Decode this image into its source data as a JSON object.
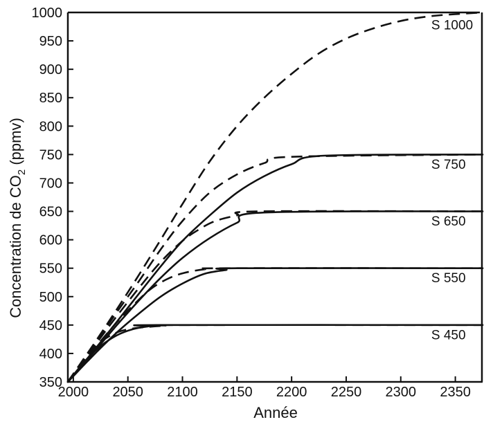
{
  "chart_data": {
    "type": "line",
    "title": "",
    "xlabel": "Année",
    "ylabel": "Concentration de CO",
    "ylabel_sub": "2",
    "ylabel_suffix": " (ppmv)",
    "xlim": [
      1995,
      2375
    ],
    "ylim": [
      350,
      1000
    ],
    "x_ticks": [
      2000,
      2050,
      2100,
      2150,
      2200,
      2250,
      2300,
      2350
    ],
    "y_ticks": [
      350,
      400,
      450,
      500,
      550,
      600,
      650,
      700,
      750,
      800,
      850,
      900,
      950,
      1000
    ],
    "grid": false,
    "series": [
      {
        "name": "S 450",
        "style": "solid",
        "x": [
          1995,
          2010,
          2025,
          2040,
          2055,
          2070,
          2080,
          2375
        ],
        "y": [
          350,
          385,
          413,
          432,
          443,
          448,
          450,
          450
        ]
      },
      {
        "name": "S 450",
        "style": "dashed",
        "x": [
          1995,
          2010,
          2025,
          2040,
          2055,
          2070,
          2085,
          2100,
          2375
        ],
        "y": [
          350,
          390,
          420,
          437,
          444,
          447,
          449,
          450,
          450
        ]
      },
      {
        "name": "S 550",
        "style": "solid",
        "x": [
          1995,
          2020,
          2040,
          2060,
          2080,
          2100,
          2120,
          2140,
          2150,
          2375
        ],
        "y": [
          350,
          400,
          437,
          470,
          500,
          523,
          540,
          547,
          550,
          550
        ]
      },
      {
        "name": "S 550",
        "style": "dashed",
        "x": [
          1995,
          2020,
          2040,
          2055,
          2070,
          2085,
          2100,
          2120,
          2140,
          2375
        ],
        "y": [
          350,
          410,
          455,
          485,
          512,
          530,
          541,
          548,
          550,
          550
        ]
      },
      {
        "name": "S 650",
        "style": "solid",
        "x": [
          1995,
          2020,
          2040,
          2060,
          2080,
          2100,
          2125,
          2150,
          2175,
          2375
        ],
        "y": [
          350,
          405,
          450,
          493,
          533,
          568,
          603,
          630,
          648,
          650
        ]
      },
      {
        "name": "S 650",
        "style": "dashed",
        "x": [
          1995,
          2020,
          2040,
          2060,
          2080,
          2100,
          2115,
          2130,
          2150,
          2170,
          2375
        ],
        "y": [
          350,
          415,
          466,
          515,
          561,
          598,
          618,
          633,
          643,
          650,
          650
        ]
      },
      {
        "name": "S 750",
        "style": "solid",
        "x": [
          1995,
          2020,
          2040,
          2060,
          2080,
          2100,
          2125,
          2150,
          2175,
          2200,
          2230,
          2375
        ],
        "y": [
          350,
          408,
          456,
          505,
          553,
          598,
          643,
          683,
          712,
          733,
          748,
          750
        ]
      },
      {
        "name": "S 750",
        "style": "dashed",
        "x": [
          1995,
          2020,
          2040,
          2060,
          2080,
          2100,
          2125,
          2150,
          2175,
          2200,
          2375
        ],
        "y": [
          350,
          418,
          473,
          527,
          583,
          633,
          683,
          715,
          735,
          746,
          750
        ]
      },
      {
        "name": "S 1000",
        "style": "dashed",
        "x": [
          1995,
          2020,
          2040,
          2060,
          2080,
          2100,
          2125,
          2150,
          2175,
          2200,
          2225,
          2250,
          2275,
          2300,
          2325,
          2350,
          2375
        ],
        "y": [
          350,
          420,
          478,
          538,
          600,
          663,
          738,
          800,
          850,
          892,
          928,
          954,
          972,
          985,
          993,
          997,
          1000
        ]
      }
    ],
    "labels": [
      {
        "text": "S 1000",
        "x": 2328,
        "y": 970
      },
      {
        "text": "S 750",
        "x": 2328,
        "y": 725
      },
      {
        "text": "S 650",
        "x": 2328,
        "y": 625
      },
      {
        "text": "S 550",
        "x": 2328,
        "y": 525
      },
      {
        "text": "S 450",
        "x": 2328,
        "y": 425
      }
    ]
  }
}
